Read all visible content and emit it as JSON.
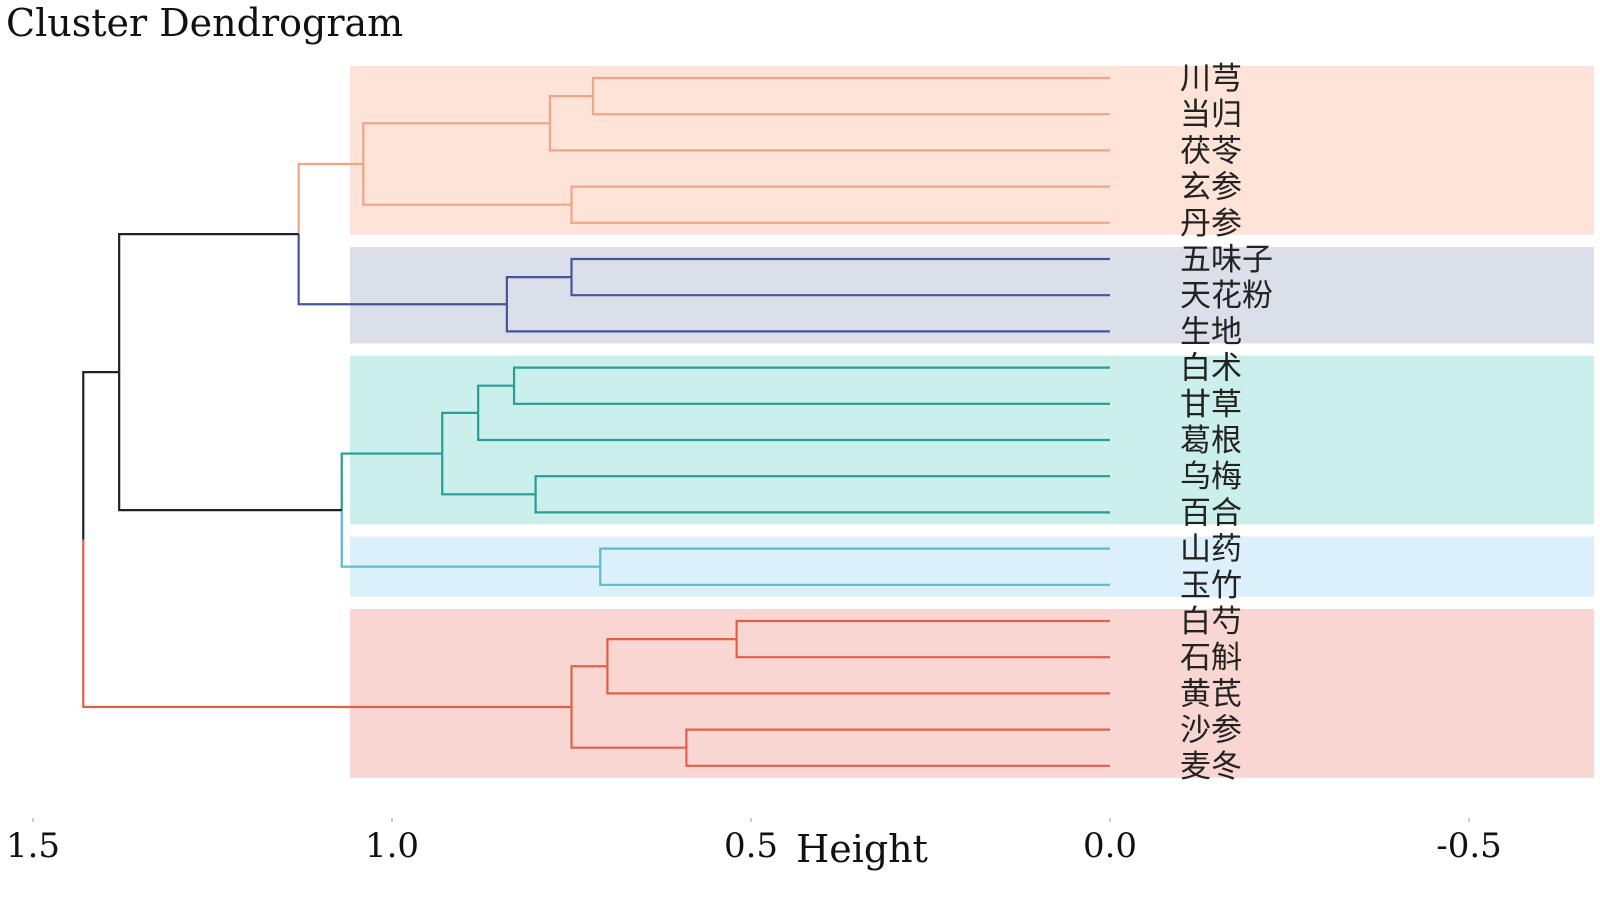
{
  "chart_data": {
    "type": "dendrogram",
    "title": "Cluster Dendrogram",
    "xlabel": "Height",
    "xlim": [
      1.5,
      -0.5
    ],
    "x_ticks": [
      {
        "value": 1.5,
        "label": "1.5"
      },
      {
        "value": 1.0,
        "label": "1.0"
      },
      {
        "value": 0.5,
        "label": "0.5"
      },
      {
        "value": 0.0,
        "label": "0.0"
      },
      {
        "value": -0.5,
        "label": "-0.5"
      }
    ],
    "leaves": [
      "川芎",
      "当归",
      "茯苓",
      "玄参",
      "丹参",
      "五味子",
      "天花粉",
      "生地",
      "白术",
      "甘草",
      "葛根",
      "乌梅",
      "百合",
      "山药",
      "玉竹",
      "白芍",
      "石斛",
      "黄芪",
      "沙参",
      "麦冬"
    ],
    "clusters": [
      {
        "name": "cluster-1",
        "leaves": [
          0,
          1,
          2,
          3,
          4
        ],
        "line_color": "#f0a585",
        "band_color": "#fde3d8"
      },
      {
        "name": "cluster-2",
        "leaves": [
          5,
          6,
          7
        ],
        "line_color": "#45559a",
        "band_color": "#dbdfea"
      },
      {
        "name": "cluster-3",
        "leaves": [
          8,
          9,
          10,
          11,
          12
        ],
        "line_color": "#279d94",
        "band_color": "#cbf0eb"
      },
      {
        "name": "cluster-4",
        "leaves": [
          13,
          14
        ],
        "line_color": "#5bb9d2",
        "band_color": "#dbf0fb"
      },
      {
        "name": "cluster-5",
        "leaves": [
          15,
          16,
          17,
          18,
          19
        ],
        "line_color": "#e06048",
        "band_color": "#f9d6d2"
      }
    ],
    "merges": [
      {
        "id": "n1",
        "left": 0,
        "right": 1,
        "height": 0.72,
        "color": "#f0a585"
      },
      {
        "id": "n2",
        "left": "n1",
        "right": 2,
        "height": 0.78,
        "color": "#f0a585"
      },
      {
        "id": "n3",
        "left": 3,
        "right": 4,
        "height": 0.75,
        "color": "#f0a585"
      },
      {
        "id": "n4",
        "left": "n2",
        "right": "n3",
        "height": 1.04,
        "color": "#f0a585"
      },
      {
        "id": "n5",
        "left": 5,
        "right": 6,
        "height": 0.75,
        "color": "#45559a"
      },
      {
        "id": "n6",
        "left": "n5",
        "right": 7,
        "height": 0.84,
        "color": "#45559a"
      },
      {
        "id": "n7",
        "left": "n4",
        "right": "n6",
        "height": 1.13,
        "color": "#f0a585",
        "right_color": "#45559a"
      },
      {
        "id": "n8",
        "left": 8,
        "right": 9,
        "height": 0.83,
        "color": "#279d94"
      },
      {
        "id": "n9",
        "left": "n8",
        "right": 10,
        "height": 0.88,
        "color": "#279d94"
      },
      {
        "id": "n10",
        "left": 11,
        "right": 12,
        "height": 0.8,
        "color": "#279d94"
      },
      {
        "id": "n11",
        "left": "n9",
        "right": "n10",
        "height": 0.93,
        "color": "#279d94"
      },
      {
        "id": "n12",
        "left": 13,
        "right": 14,
        "height": 0.71,
        "color": "#5bb9d2"
      },
      {
        "id": "n13",
        "left": "n11",
        "right": "n12",
        "height": 1.07,
        "color": "#279d94",
        "right_color": "#5bb9d2"
      },
      {
        "id": "n14",
        "left": "n7",
        "right": "n13",
        "height": 1.38,
        "color": "#222222"
      },
      {
        "id": "n15",
        "left": 15,
        "right": 16,
        "height": 0.52,
        "color": "#e06048"
      },
      {
        "id": "n16",
        "left": "n15",
        "right": 17,
        "height": 0.7,
        "color": "#e06048"
      },
      {
        "id": "n17",
        "left": 18,
        "right": 19,
        "height": 0.59,
        "color": "#e06048"
      },
      {
        "id": "n18",
        "left": "n16",
        "right": "n17",
        "height": 0.75,
        "color": "#e06048"
      },
      {
        "id": "n19",
        "left": "n14",
        "right": "n18",
        "height": 1.43,
        "color": "#222222",
        "right_color": "#e06048"
      }
    ]
  }
}
